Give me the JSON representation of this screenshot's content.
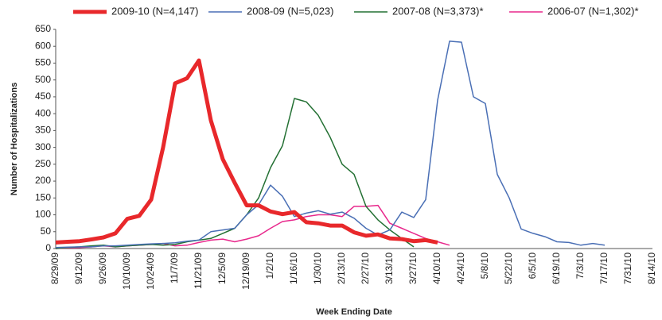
{
  "chart_data": {
    "type": "line",
    "x_label": "Week Ending Date",
    "y_label": "Number of Hospitalizations",
    "categories": [
      "8/29/09",
      null,
      "9/12/09",
      null,
      "9/26/09",
      null,
      "10/10/09",
      null,
      "10/24/09",
      null,
      "11/7/09",
      null,
      "11/21/09",
      null,
      "12/5/09",
      null,
      "12/19/09",
      null,
      "1/2/10",
      null,
      "1/16/10",
      null,
      "1/30/10",
      null,
      "2/13/10",
      null,
      "2/27/10",
      null,
      "3/13/10",
      null,
      "3/27/10",
      null,
      "4/10/10",
      null,
      "4/24/10",
      null,
      "5/8/10",
      null,
      "5/22/10",
      null,
      "6/5/10",
      null,
      "6/19/10",
      null,
      "7/3/10",
      null,
      "7/17/10",
      null,
      "7/31/10",
      null,
      "8/14/10"
    ],
    "series": [
      {
        "name": "2009-10 (N=4,147)",
        "color": "#e8282b",
        "width": 5,
        "values": [
          18,
          20,
          22,
          27,
          33,
          45,
          88,
          97,
          145,
          300,
          490,
          505,
          558,
          380,
          265,
          195,
          128,
          128,
          110,
          102,
          108,
          78,
          75,
          68,
          68,
          48,
          38,
          42,
          30,
          28,
          22,
          25,
          18,
          null,
          null,
          null,
          null,
          null,
          null,
          null,
          null,
          null,
          null,
          null,
          null,
          null,
          null,
          null,
          null,
          null,
          null
        ]
      },
      {
        "name": "2008-09 (N=5,023)",
        "color": "#4a6fb5",
        "width": 1.5,
        "values": [
          3,
          4,
          5,
          5,
          8,
          8,
          10,
          12,
          14,
          15,
          17,
          22,
          25,
          50,
          55,
          60,
          100,
          130,
          188,
          155,
          95,
          105,
          112,
          102,
          108,
          90,
          60,
          40,
          55,
          108,
          92,
          145,
          440,
          615,
          612,
          450,
          430,
          220,
          150,
          58,
          45,
          35,
          20,
          18,
          10,
          15,
          10,
          null,
          null,
          null,
          null
        ]
      },
      {
        "name": "2007-08 (N=3,373)*",
        "color": "#237033",
        "width": 1.5,
        "values": [
          0,
          3,
          5,
          8,
          10,
          5,
          8,
          10,
          12,
          10,
          12,
          20,
          25,
          30,
          45,
          60,
          100,
          150,
          240,
          305,
          445,
          435,
          395,
          330,
          250,
          220,
          125,
          85,
          55,
          30,
          5,
          null,
          null,
          null,
          null,
          null,
          null,
          null,
          null,
          null,
          null,
          null,
          null,
          null,
          null,
          null,
          null,
          null,
          null,
          null,
          null
        ]
      },
      {
        "name": "2006-07 (N=1,302)*",
        "color": "#e8288c",
        "width": 1.5,
        "values": [
          0,
          2,
          3,
          5,
          8,
          5,
          8,
          10,
          12,
          15,
          8,
          10,
          18,
          25,
          28,
          20,
          28,
          38,
          60,
          80,
          85,
          95,
          100,
          100,
          95,
          125,
          125,
          128,
          75,
          60,
          45,
          30,
          20,
          10,
          null,
          null,
          null,
          null,
          null,
          null,
          null,
          null,
          null,
          null,
          null,
          null,
          null,
          null,
          null,
          null,
          null
        ]
      }
    ],
    "ylim": [
      0,
      650
    ],
    "yticks": [
      0,
      50,
      100,
      150,
      200,
      250,
      300,
      350,
      400,
      450,
      500,
      550,
      600,
      650
    ],
    "legend": "top"
  }
}
